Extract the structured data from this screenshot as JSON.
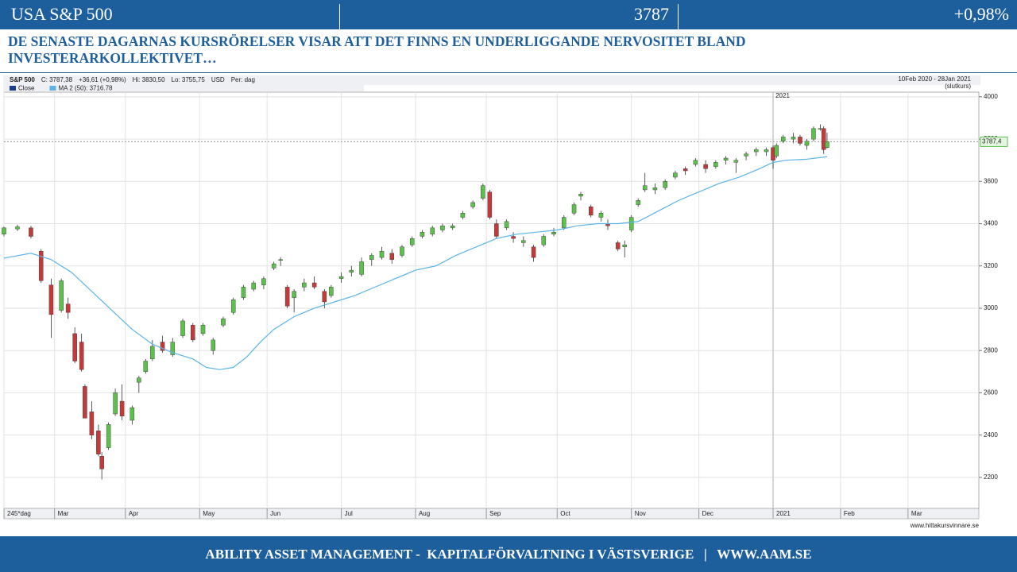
{
  "header": {
    "title": "USA S&P 500",
    "price": "3787",
    "change": "+0,98%"
  },
  "headline": "DE SENASTE DAGARNAS KURSRÖRELSER VISAR ATT DET FINNS EN UNDERLIGGANDE NERVOSITET BLAND INVESTERARKOLLEKTIVET…",
  "footer": "ABILITY ASSET MANAGEMENT -  KAPITALFÖRVALTNING I VÄSTSVERIGE   |   WWW.AAM.SE",
  "chart_data": {
    "type": "candlestick",
    "info": [
      "S&P 500",
      "C: 3787,38",
      "+36,61 (+0,98%)",
      "Hi: 3830,50",
      "Lo: 3755,75",
      "USD",
      "Per: dag"
    ],
    "period": "10Feb 2020 - 28Jan 2021",
    "period_note": "(slutkurs)",
    "source": "www.hittakursvinnare.se",
    "year_marker": {
      "value": 228,
      "label": "2021"
    },
    "annotation": "?",
    "last_price": {
      "value": 3787.4,
      "label": "3787,4"
    },
    "x": [
      0,
      4,
      8,
      11,
      14,
      17,
      19,
      21,
      23,
      24,
      26,
      28,
      29,
      31,
      33,
      35,
      38,
      40,
      42,
      44,
      47,
      50,
      53,
      56,
      59,
      62,
      65,
      68,
      71,
      74,
      77,
      80,
      82,
      84,
      86,
      89,
      92,
      95,
      97,
      100,
      103,
      106,
      109,
      112,
      115,
      118,
      121,
      124,
      127,
      130,
      133,
      136,
      139,
      142,
      144,
      146,
      149,
      151,
      154,
      157,
      160,
      163,
      166,
      169,
      171,
      174,
      177,
      179,
      182,
      184,
      186,
      188,
      190,
      193,
      196,
      199,
      202,
      205,
      208,
      211,
      214,
      217,
      220,
      223,
      226,
      228,
      229,
      231,
      234,
      236,
      238,
      240,
      242,
      243,
      244
    ],
    "series": [
      {
        "name": "Close",
        "type": "candlestick",
        "color": "#1a3f8f",
        "up_color": "#5cc04c",
        "down_color": "#c23a3a",
        "open": [
          3350,
          3375,
          3380,
          3270,
          3110,
          2990,
          3020,
          2880,
          2840,
          2630,
          2510,
          2420,
          2300,
          2340,
          2500,
          2560,
          2470,
          2650,
          2700,
          2760,
          2840,
          2780,
          2870,
          2920,
          2880,
          2800,
          2920,
          2980,
          3050,
          3090,
          3110,
          3190,
          3230,
          3100,
          3050,
          3100,
          3120,
          3080,
          3060,
          3140,
          3170,
          3160,
          3230,
          3240,
          3260,
          3250,
          3300,
          3340,
          3350,
          3370,
          3380,
          3430,
          3480,
          3520,
          3550,
          3400,
          3380,
          3340,
          3310,
          3290,
          3300,
          3350,
          3380,
          3450,
          3530,
          3480,
          3430,
          3400,
          3310,
          3290,
          3370,
          3490,
          3560,
          3560,
          3570,
          3620,
          3660,
          3680,
          3680,
          3670,
          3700,
          3690,
          3720,
          3740,
          3740,
          3760,
          3720,
          3790,
          3800,
          3810,
          3770,
          3800,
          3850,
          3850,
          3760
        ],
        "high": [
          3385,
          3395,
          3390,
          3280,
          3140,
          3140,
          3050,
          2910,
          2880,
          2640,
          2560,
          2450,
          2320,
          2460,
          2620,
          2640,
          2540,
          2680,
          2760,
          2850,
          2870,
          2860,
          2950,
          2930,
          2930,
          2860,
          2960,
          3050,
          3110,
          3130,
          3150,
          3220,
          3240,
          3110,
          3090,
          3140,
          3150,
          3090,
          3110,
          3170,
          3200,
          3240,
          3260,
          3290,
          3280,
          3300,
          3340,
          3370,
          3390,
          3400,
          3400,
          3460,
          3510,
          3590,
          3560,
          3420,
          3420,
          3360,
          3340,
          3300,
          3350,
          3380,
          3440,
          3500,
          3550,
          3490,
          3460,
          3420,
          3320,
          3320,
          3440,
          3520,
          3640,
          3590,
          3610,
          3650,
          3670,
          3710,
          3700,
          3700,
          3720,
          3710,
          3740,
          3760,
          3760,
          3770,
          3780,
          3820,
          3830,
          3820,
          3800,
          3860,
          3870,
          3860,
          3830.5
        ],
        "low": [
          3340,
          3365,
          3330,
          3120,
          2860,
          2980,
          2950,
          2740,
          2700,
          2480,
          2380,
          2300,
          2190,
          2330,
          2490,
          2470,
          2450,
          2600,
          2690,
          2750,
          2790,
          2770,
          2860,
          2840,
          2870,
          2780,
          2910,
          2970,
          3040,
          3080,
          3090,
          3180,
          3200,
          3000,
          2980,
          3080,
          3090,
          3000,
          3050,
          3120,
          3150,
          3150,
          3200,
          3230,
          3210,
          3240,
          3290,
          3330,
          3340,
          3360,
          3370,
          3420,
          3470,
          3510,
          3420,
          3330,
          3370,
          3310,
          3290,
          3220,
          3290,
          3340,
          3370,
          3440,
          3510,
          3430,
          3410,
          3370,
          3270,
          3240,
          3360,
          3480,
          3550,
          3540,
          3560,
          3610,
          3630,
          3670,
          3640,
          3660,
          3680,
          3640,
          3700,
          3720,
          3720,
          3660,
          3710,
          3780,
          3780,
          3770,
          3750,
          3790,
          3840,
          3730,
          3755.75
        ],
        "close": [
          3380,
          3385,
          3340,
          3130,
          2970,
          3130,
          2980,
          2750,
          2710,
          2480,
          2400,
          2310,
          2240,
          2450,
          2600,
          2490,
          2530,
          2670,
          2750,
          2820,
          2800,
          2840,
          2940,
          2850,
          2920,
          2850,
          2950,
          3040,
          3100,
          3120,
          3140,
          3210,
          3230,
          3010,
          3080,
          3120,
          3100,
          3030,
          3100,
          3150,
          3180,
          3220,
          3250,
          3270,
          3230,
          3290,
          3330,
          3360,
          3380,
          3390,
          3390,
          3450,
          3500,
          3580,
          3430,
          3340,
          3410,
          3330,
          3320,
          3240,
          3340,
          3360,
          3430,
          3490,
          3540,
          3440,
          3450,
          3390,
          3280,
          3300,
          3430,
          3510,
          3580,
          3570,
          3600,
          3640,
          3650,
          3700,
          3660,
          3690,
          3710,
          3700,
          3730,
          3750,
          3750,
          3700,
          3770,
          3810,
          3810,
          3780,
          3790,
          3850,
          3850,
          3750,
          3787.38
        ]
      },
      {
        "name": "MA 2 (50): 3716.78",
        "type": "line",
        "color": "#5ab4e6",
        "x": [
          0,
          8,
          14,
          20,
          26,
          32,
          38,
          44,
          50,
          56,
          60,
          64,
          68,
          72,
          76,
          80,
          86,
          92,
          98,
          104,
          110,
          116,
          122,
          128,
          134,
          140,
          146,
          152,
          158,
          164,
          170,
          176,
          182,
          188,
          194,
          200,
          206,
          212,
          218,
          224,
          228,
          232,
          238,
          244
        ],
        "values": [
          3237,
          3260,
          3230,
          3170,
          3080,
          2990,
          2900,
          2830,
          2790,
          2760,
          2720,
          2710,
          2720,
          2770,
          2840,
          2900,
          2960,
          3000,
          3030,
          3060,
          3100,
          3140,
          3180,
          3200,
          3250,
          3290,
          3330,
          3350,
          3360,
          3370,
          3390,
          3400,
          3400,
          3410,
          3460,
          3510,
          3550,
          3590,
          3620,
          3660,
          3690,
          3700,
          3705,
          3716.78
        ]
      }
    ],
    "xlim": [
      0,
      289
    ],
    "ylim": [
      2053,
      4022
    ],
    "xticks": [
      {
        "value": 0,
        "label": "245*dag"
      },
      {
        "value": 15,
        "label": "Mar"
      },
      {
        "value": 36,
        "label": "Apr"
      },
      {
        "value": 58,
        "label": "May"
      },
      {
        "value": 78,
        "label": "Jun"
      },
      {
        "value": 100,
        "label": "Jul"
      },
      {
        "value": 122,
        "label": "Aug"
      },
      {
        "value": 143,
        "label": "Sep"
      },
      {
        "value": 164,
        "label": "Oct"
      },
      {
        "value": 186,
        "label": "Nov"
      },
      {
        "value": 206,
        "label": "Dec"
      },
      {
        "value": 228,
        "label": "2021"
      },
      {
        "value": 248,
        "label": "Feb"
      },
      {
        "value": 268,
        "label": "Mar"
      }
    ],
    "yticks": [
      2200,
      2400,
      2600,
      2800,
      3000,
      3200,
      3400,
      3600,
      3800,
      4000
    ],
    "grid": true
  }
}
